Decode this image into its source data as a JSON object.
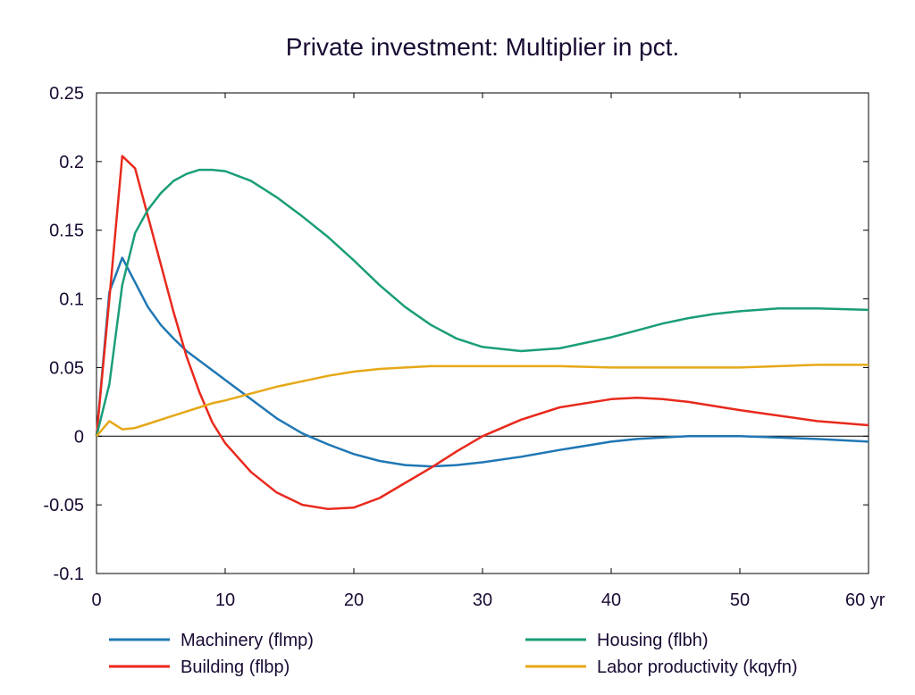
{
  "chart_data": {
    "type": "line",
    "title": "Private investment: Multiplier in pct.",
    "xlabel": "",
    "ylabel": "",
    "xlim": [
      0,
      60
    ],
    "ylim": [
      -0.1,
      0.25
    ],
    "x_tick_labels": [
      "0",
      "10",
      "20",
      "30",
      "40",
      "50",
      "60 yr"
    ],
    "y_tick_labels": [
      "0.25",
      "0.2",
      "0.15",
      "0.1",
      "0.05",
      "0",
      "-0.05",
      "-0.1"
    ],
    "grid": false,
    "legend_position": "bottom",
    "x": [
      0,
      1,
      2,
      3,
      4,
      5,
      6,
      7,
      8,
      9,
      10,
      12,
      14,
      16,
      18,
      20,
      22,
      24,
      26,
      28,
      30,
      33,
      36,
      40,
      42,
      44,
      46,
      48,
      50,
      53,
      56,
      60
    ],
    "series": [
      {
        "name": "Machinery (flmp)",
        "color": "#1f77b4",
        "values": [
          0.0,
          0.105,
          0.13,
          0.112,
          0.094,
          0.081,
          0.071,
          0.062,
          0.055,
          0.048,
          0.041,
          0.027,
          0.013,
          0.002,
          -0.006,
          -0.013,
          -0.018,
          -0.021,
          -0.022,
          -0.021,
          -0.019,
          -0.015,
          -0.01,
          -0.004,
          -0.002,
          -0.001,
          0.0,
          0.0,
          0.0,
          -0.001,
          -0.002,
          -0.004
        ]
      },
      {
        "name": "Building (flbp)",
        "color": "#e8291c",
        "values": [
          0.0,
          0.1,
          0.204,
          0.195,
          0.16,
          0.125,
          0.09,
          0.058,
          0.032,
          0.01,
          -0.005,
          -0.026,
          -0.041,
          -0.05,
          -0.053,
          -0.052,
          -0.045,
          -0.034,
          -0.023,
          -0.011,
          0.0,
          0.012,
          0.021,
          0.027,
          0.028,
          0.027,
          0.025,
          0.022,
          0.019,
          0.015,
          0.011,
          0.008
        ]
      },
      {
        "name": "Housing (flbh)",
        "color": "#1a9e78",
        "values": [
          0.0,
          0.038,
          0.11,
          0.148,
          0.165,
          0.177,
          0.186,
          0.191,
          0.194,
          0.194,
          0.193,
          0.186,
          0.174,
          0.16,
          0.145,
          0.128,
          0.11,
          0.094,
          0.081,
          0.071,
          0.065,
          0.062,
          0.064,
          0.072,
          0.077,
          0.082,
          0.086,
          0.089,
          0.091,
          0.093,
          0.093,
          0.092
        ]
      },
      {
        "name": "Labor productivity (kqyfn)",
        "color": "#e6a817",
        "values": [
          0.0,
          0.011,
          0.005,
          0.006,
          0.009,
          0.012,
          0.015,
          0.018,
          0.021,
          0.024,
          0.026,
          0.031,
          0.036,
          0.04,
          0.044,
          0.047,
          0.049,
          0.05,
          0.051,
          0.051,
          0.051,
          0.051,
          0.051,
          0.05,
          0.05,
          0.05,
          0.05,
          0.05,
          0.05,
          0.051,
          0.052,
          0.052
        ]
      }
    ]
  }
}
